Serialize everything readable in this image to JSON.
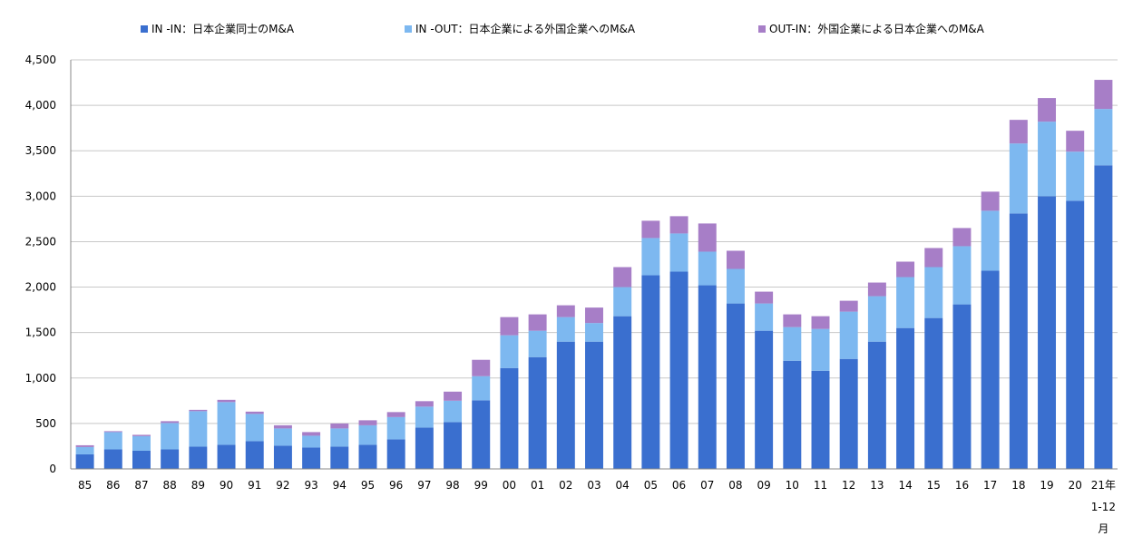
{
  "chart_data": {
    "type": "bar",
    "stacked": true,
    "title": "",
    "xlabel": "",
    "ylabel": "",
    "ylim": [
      0,
      4500
    ],
    "yticks": [
      0,
      500,
      1000,
      1500,
      2000,
      2500,
      3000,
      3500,
      4000,
      4500
    ],
    "ytick_labels": [
      "0",
      "500",
      "1,000",
      "1,500",
      "2,000",
      "2,500",
      "3,000",
      "3,500",
      "4,000",
      "4,500"
    ],
    "grid": "horizontal",
    "legend_position": "top",
    "categories": [
      "85",
      "86",
      "87",
      "88",
      "89",
      "90",
      "91",
      "92",
      "93",
      "94",
      "95",
      "96",
      "97",
      "98",
      "99",
      "00",
      "01",
      "02",
      "03",
      "04",
      "05",
      "06",
      "07",
      "08",
      "09",
      "10",
      "11",
      "12",
      "13",
      "14",
      "15",
      "16",
      "17",
      "18",
      "19",
      "20",
      "21年"
    ],
    "last_category_extra_lines": [
      "1-12",
      "月"
    ],
    "series": [
      {
        "name": "IN -IN：日本企業同士のM&A",
        "color": "#3a6fcf",
        "values": [
          160,
          215,
          200,
          215,
          245,
          265,
          305,
          255,
          235,
          245,
          265,
          325,
          455,
          515,
          755,
          1110,
          1230,
          1400,
          1400,
          1680,
          2130,
          2170,
          2020,
          1820,
          1520,
          1190,
          1080,
          1210,
          1400,
          1550,
          1660,
          1810,
          2180,
          2810,
          3000,
          2950,
          3340
        ]
      },
      {
        "name": "IN -OUT：日本企業による外国企業へのM&A",
        "color": "#7db8f0",
        "values": [
          80,
          190,
          160,
          290,
          390,
          470,
          300,
          190,
          130,
          200,
          215,
          245,
          230,
          235,
          265,
          360,
          290,
          270,
          205,
          320,
          410,
          420,
          370,
          380,
          300,
          370,
          460,
          520,
          500,
          560,
          560,
          640,
          660,
          770,
          820,
          540,
          620
        ]
      },
      {
        "name": "OUT-IN：外国企業による日本企業へのM&A",
        "color": "#a77ec7",
        "values": [
          20,
          10,
          15,
          20,
          15,
          25,
          25,
          35,
          40,
          55,
          55,
          55,
          60,
          100,
          180,
          200,
          180,
          130,
          170,
          220,
          190,
          190,
          310,
          200,
          130,
          140,
          140,
          120,
          150,
          170,
          210,
          200,
          210,
          260,
          260,
          230,
          320
        ]
      }
    ]
  }
}
